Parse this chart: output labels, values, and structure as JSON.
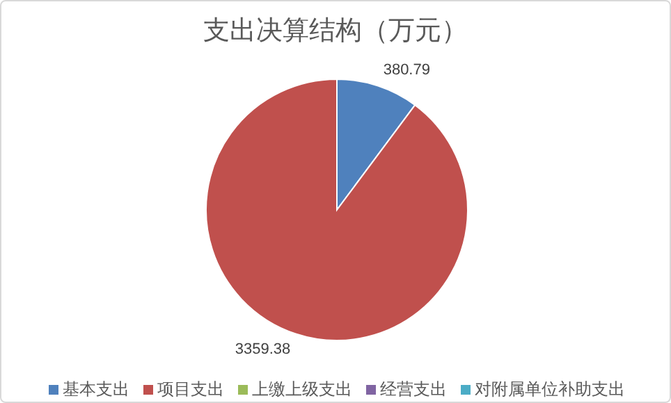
{
  "chart_data": {
    "type": "pie",
    "title": "支出决算结构（万元）",
    "categories": [
      "基本支出",
      "项目支出",
      "上缴上级支出",
      "经营支出",
      "对附属单位补助支出"
    ],
    "values": [
      380.79,
      3359.38,
      0,
      0,
      0
    ],
    "colors": [
      "#4f81bd",
      "#c0504d",
      "#9bbb59",
      "#8064a2",
      "#4bacc6"
    ],
    "value_labels": [
      "380.79",
      "3359.38",
      null,
      null,
      null
    ],
    "legend": "bottom"
  }
}
